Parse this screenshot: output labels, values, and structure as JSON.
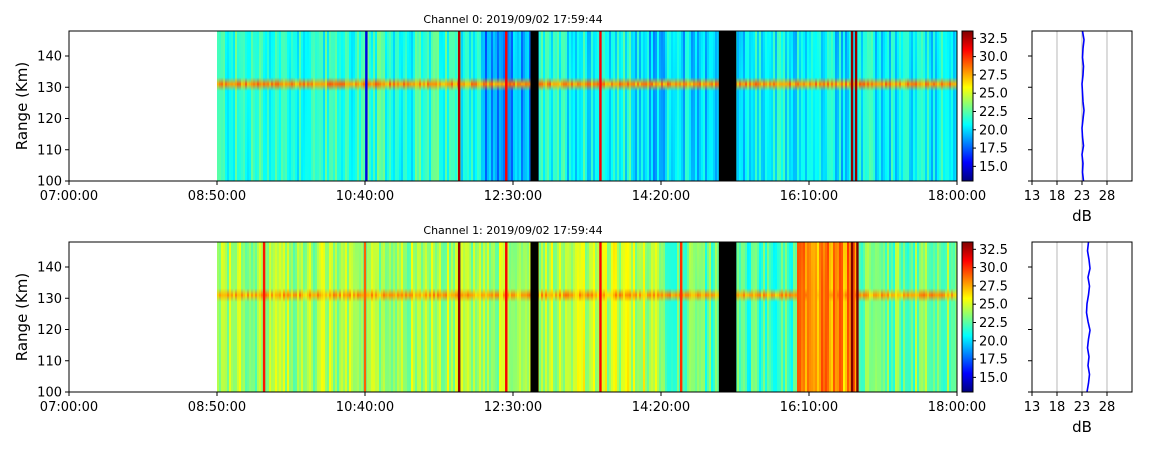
{
  "colormap": {
    "name": "jet",
    "stops": [
      "#00007f",
      "#0000ff",
      "#007fff",
      "#00ffff",
      "#7fff7f",
      "#ffff00",
      "#ff7f00",
      "#ff0000",
      "#7f0000"
    ],
    "zlim": [
      13,
      33.5
    ],
    "ticks": [
      "15.0",
      "17.5",
      "20.0",
      "22.5",
      "25.0",
      "27.5",
      "30.0",
      "32.5"
    ]
  },
  "chart_data": [
    {
      "type": "heatmap",
      "title": "Channel 0: 2019/09/02 17:59:44",
      "ylabel": "Range (Km)",
      "xlabel": "",
      "xlim": [
        "07:00:00",
        "18:00:00"
      ],
      "xticks": [
        "07:00:00",
        "08:50:00",
        "10:40:00",
        "12:30:00",
        "14:20:00",
        "16:10:00",
        "18:00:00"
      ],
      "ylim": [
        100,
        148
      ],
      "yticks": [
        "100",
        "110",
        "120",
        "130",
        "140"
      ],
      "data_start": "08:50:00",
      "band_center_km": 131,
      "base_db": 21.5,
      "band_db": 28.0,
      "segments": [
        {
          "from": "08:50:00",
          "to": "12:05:00",
          "db": 21.5
        },
        {
          "from": "12:05:00",
          "to": "12:45:00",
          "db": 18.5
        },
        {
          "from": "12:45:00",
          "to": "14:00:00",
          "db": 21.0
        },
        {
          "from": "14:00:00",
          "to": "15:15:00",
          "db": 20.0
        },
        {
          "from": "15:15:00",
          "to": "18:00:00",
          "db": 20.5
        }
      ],
      "gaps": [
        [
          "12:43:00",
          "12:49:00"
        ],
        [
          "15:03:00",
          "15:16:00"
        ]
      ],
      "spikes": [
        {
          "t": "10:41:00",
          "db": 15.0
        },
        {
          "t": "11:50:00",
          "db": 32.5
        },
        {
          "t": "12:25:00",
          "db": 31.0
        },
        {
          "t": "13:35:00",
          "db": 31.0
        },
        {
          "t": "16:42:00",
          "db": 33.0
        },
        {
          "t": "16:45:00",
          "db": 33.0
        }
      ],
      "profile": {
        "xlabel": "dB",
        "xlim": [
          13,
          33
        ],
        "xticks": [
          "13",
          "18",
          "23",
          "28"
        ],
        "values_db": [
          23.3,
          23.1,
          23.2,
          23.0,
          23.3,
          23.1,
          23.0,
          23.2,
          23.4,
          23.2,
          23.1,
          23.0,
          23.2,
          23.3,
          23.1,
          23.2,
          23.4,
          23.1
        ]
      }
    },
    {
      "type": "heatmap",
      "title": "Channel 1: 2019/09/02 17:59:44",
      "ylabel": "Range (Km)",
      "xlabel": "",
      "xlim": [
        "07:00:00",
        "18:00:00"
      ],
      "xticks": [
        "07:00:00",
        "08:50:00",
        "10:40:00",
        "12:30:00",
        "14:20:00",
        "16:10:00",
        "18:00:00"
      ],
      "ylim": [
        100,
        148
      ],
      "yticks": [
        "100",
        "110",
        "120",
        "130",
        "140"
      ],
      "data_start": "08:50:00",
      "band_center_km": 131,
      "base_db": 24.0,
      "band_db": 27.5,
      "segments": [
        {
          "from": "08:50:00",
          "to": "12:45:00",
          "db": 24.0
        },
        {
          "from": "12:45:00",
          "to": "14:20:00",
          "db": 24.5
        },
        {
          "from": "14:20:00",
          "to": "15:15:00",
          "db": 22.5
        },
        {
          "from": "15:15:00",
          "to": "16:00:00",
          "db": 22.0
        },
        {
          "from": "16:00:00",
          "to": "16:45:00",
          "db": 28.0
        },
        {
          "from": "16:45:00",
          "to": "18:00:00",
          "db": 23.0
        }
      ],
      "gaps": [
        [
          "12:43:00",
          "12:49:00"
        ],
        [
          "15:03:00",
          "15:16:00"
        ]
      ],
      "spikes": [
        {
          "t": "09:25:00",
          "db": 30.5
        },
        {
          "t": "10:40:00",
          "db": 29.0
        },
        {
          "t": "11:50:00",
          "db": 33.0
        },
        {
          "t": "12:25:00",
          "db": 31.0
        },
        {
          "t": "13:35:00",
          "db": 31.0
        },
        {
          "t": "14:35:00",
          "db": 30.0
        },
        {
          "t": "16:42:00",
          "db": 33.5
        },
        {
          "t": "16:46:00",
          "db": 33.5
        }
      ],
      "profile": {
        "xlabel": "dB",
        "xlim": [
          13,
          33
        ],
        "xticks": [
          "13",
          "18",
          "23",
          "28"
        ],
        "values_db": [
          24.0,
          24.3,
          24.5,
          24.2,
          24.4,
          24.1,
          24.3,
          24.6,
          24.2,
          23.9,
          24.0,
          24.3,
          24.5,
          24.2,
          24.6,
          24.4,
          24.1,
          24.3
        ]
      }
    }
  ]
}
